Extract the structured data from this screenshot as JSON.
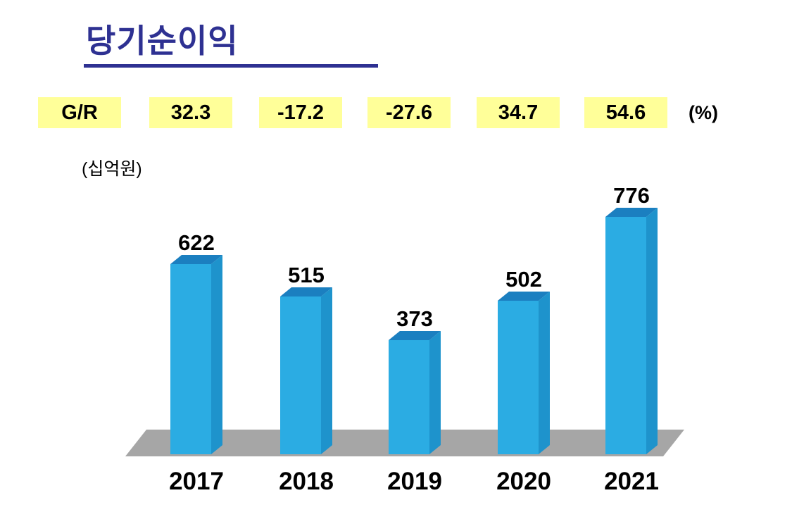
{
  "chart_data": {
    "type": "bar",
    "title": "당기순이익",
    "unit_label": "(십억원)",
    "gr_label": "G/R",
    "percent_label": "(%)",
    "categories": [
      "2017",
      "2018",
      "2019",
      "2020",
      "2021"
    ],
    "values": [
      622,
      515,
      373,
      502,
      776
    ],
    "growth_rates": [
      "32.3",
      "-17.2",
      "-27.6",
      "34.7",
      "54.6"
    ],
    "xlabel": "",
    "ylabel": "",
    "ylim": [
      0,
      800
    ],
    "grid": false,
    "legend": "none",
    "style": "3d-column",
    "colors": {
      "bar_front": "#2BACE3",
      "bar_top": "#1B7FC0",
      "bar_side": "#1E93CC",
      "floor": "#A6A6A6",
      "highlight": "#FFFF99",
      "title": "#2E3192",
      "label": "#000000"
    }
  }
}
